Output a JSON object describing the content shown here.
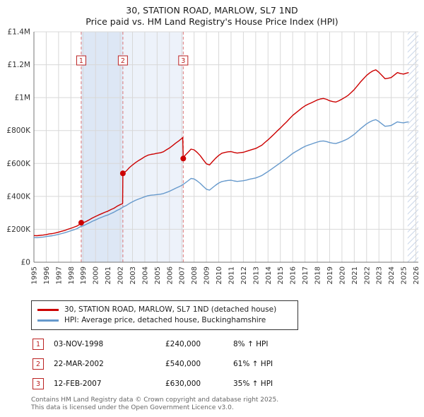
{
  "title": "30, STATION ROAD, MARLOW, SL7 1ND",
  "subtitle": "Price paid vs. HM Land Registry's House Price Index (HPI)",
  "colors": {
    "property_line": "#cc0000",
    "hpi_line": "#6699cc",
    "sale_dashed_line": "#dd7777",
    "marker_box": "#bb2222",
    "band1": "#dde7f5",
    "band2": "#edf2fa",
    "hatch": "#c9d5e8",
    "grid": "#d8d8d8",
    "axis": "#777777",
    "tick_text": "#333333"
  },
  "chart_data": {
    "type": "line",
    "x_range": [
      1995,
      2026.2
    ],
    "ylim": [
      0,
      1400
    ],
    "value_unit": "GBP thousands",
    "grid": true,
    "legend_position": "below",
    "y_ticks": [
      {
        "v": 0,
        "label": "£0"
      },
      {
        "v": 200,
        "label": "£200K"
      },
      {
        "v": 400,
        "label": "£400K"
      },
      {
        "v": 600,
        "label": "£600K"
      },
      {
        "v": 800,
        "label": "£800K"
      },
      {
        "v": 1000,
        "label": "£1M"
      },
      {
        "v": 1200,
        "label": "£1.2M"
      },
      {
        "v": 1400,
        "label": "£1.4M"
      }
    ],
    "x_ticks": [
      1995,
      1996,
      1997,
      1998,
      1999,
      2000,
      2001,
      2002,
      2003,
      2004,
      2005,
      2006,
      2007,
      2008,
      2009,
      2010,
      2011,
      2012,
      2013,
      2014,
      2015,
      2016,
      2017,
      2018,
      2019,
      2020,
      2021,
      2022,
      2023,
      2024,
      2025,
      2026
    ],
    "bands": [
      {
        "from": 1998.84,
        "to": 2002.22
      },
      {
        "from": 2002.22,
        "to": 2007.12
      }
    ],
    "hatch_from": 2025.33,
    "sales": [
      {
        "num": "1",
        "year": 1998.84,
        "price_k": 240
      },
      {
        "num": "2",
        "year": 2002.22,
        "price_k": 540
      },
      {
        "num": "3",
        "year": 2007.12,
        "price_k": 630
      }
    ],
    "series": [
      {
        "name": "30, STATION ROAD, MARLOW, SL7 1ND (detached house)",
        "color": "#cc0000",
        "points": [
          [
            1995,
            162
          ],
          [
            1995.25,
            161
          ],
          [
            1995.5,
            163
          ],
          [
            1995.75,
            165
          ],
          [
            1996,
            168
          ],
          [
            1996.25,
            172
          ],
          [
            1996.5,
            174
          ],
          [
            1996.75,
            178
          ],
          [
            1997,
            183
          ],
          [
            1997.25,
            188
          ],
          [
            1997.5,
            193
          ],
          [
            1997.75,
            200
          ],
          [
            1998,
            206
          ],
          [
            1998.25,
            213
          ],
          [
            1998.5,
            220
          ],
          [
            1998.75,
            232
          ],
          [
            1998.84,
            240
          ],
          [
            1999,
            239
          ],
          [
            1999.25,
            248
          ],
          [
            1999.5,
            258
          ],
          [
            1999.75,
            269
          ],
          [
            2000,
            278
          ],
          [
            2000.25,
            287
          ],
          [
            2000.5,
            295
          ],
          [
            2000.75,
            303
          ],
          [
            2001,
            310
          ],
          [
            2001.25,
            320
          ],
          [
            2001.5,
            328
          ],
          [
            2001.75,
            340
          ],
          [
            2002,
            350
          ],
          [
            2002.2,
            356
          ],
          [
            2002.22,
            540
          ],
          [
            2002.5,
            555
          ],
          [
            2002.75,
            575
          ],
          [
            2003,
            591
          ],
          [
            2003.25,
            605
          ],
          [
            2003.5,
            618
          ],
          [
            2003.75,
            629
          ],
          [
            2004,
            641
          ],
          [
            2004.25,
            650
          ],
          [
            2004.5,
            655
          ],
          [
            2004.75,
            658
          ],
          [
            2005,
            662
          ],
          [
            2005.25,
            665
          ],
          [
            2005.5,
            671
          ],
          [
            2005.75,
            683
          ],
          [
            2006,
            694
          ],
          [
            2006.25,
            708
          ],
          [
            2006.5,
            723
          ],
          [
            2006.75,
            737
          ],
          [
            2007,
            752
          ],
          [
            2007.08,
            758
          ],
          [
            2007.12,
            630
          ],
          [
            2007.25,
            648
          ],
          [
            2007.5,
            667
          ],
          [
            2007.75,
            687
          ],
          [
            2008,
            683
          ],
          [
            2008.25,
            667
          ],
          [
            2008.5,
            647
          ],
          [
            2008.75,
            622
          ],
          [
            2009,
            598
          ],
          [
            2009.25,
            591
          ],
          [
            2009.5,
            612
          ],
          [
            2009.75,
            632
          ],
          [
            2010,
            649
          ],
          [
            2010.25,
            662
          ],
          [
            2010.5,
            667
          ],
          [
            2010.75,
            671
          ],
          [
            2011,
            672
          ],
          [
            2011.25,
            667
          ],
          [
            2011.5,
            663
          ],
          [
            2011.75,
            666
          ],
          [
            2012,
            668
          ],
          [
            2012.25,
            674
          ],
          [
            2012.5,
            680
          ],
          [
            2012.75,
            686
          ],
          [
            2013,
            691
          ],
          [
            2013.25,
            701
          ],
          [
            2013.5,
            711
          ],
          [
            2013.75,
            728
          ],
          [
            2014,
            744
          ],
          [
            2014.25,
            761
          ],
          [
            2014.5,
            779
          ],
          [
            2014.75,
            798
          ],
          [
            2015,
            815
          ],
          [
            2015.25,
            834
          ],
          [
            2015.5,
            852
          ],
          [
            2015.75,
            872
          ],
          [
            2016,
            892
          ],
          [
            2016.25,
            907
          ],
          [
            2016.5,
            922
          ],
          [
            2016.75,
            937
          ],
          [
            2017,
            950
          ],
          [
            2017.25,
            960
          ],
          [
            2017.5,
            968
          ],
          [
            2017.75,
            977
          ],
          [
            2018,
            986
          ],
          [
            2018.25,
            992
          ],
          [
            2018.5,
            995
          ],
          [
            2018.75,
            990
          ],
          [
            2019,
            981
          ],
          [
            2019.25,
            976
          ],
          [
            2019.5,
            973
          ],
          [
            2019.75,
            981
          ],
          [
            2020,
            991
          ],
          [
            2020.25,
            1002
          ],
          [
            2020.5,
            1014
          ],
          [
            2020.75,
            1031
          ],
          [
            2021,
            1049
          ],
          [
            2021.25,
            1072
          ],
          [
            2021.5,
            1095
          ],
          [
            2021.75,
            1115
          ],
          [
            2022,
            1135
          ],
          [
            2022.25,
            1150
          ],
          [
            2022.5,
            1162
          ],
          [
            2022.75,
            1169
          ],
          [
            2023,
            1154
          ],
          [
            2023.25,
            1134
          ],
          [
            2023.5,
            1115
          ],
          [
            2023.75,
            1118
          ],
          [
            2024,
            1122
          ],
          [
            2024.25,
            1137
          ],
          [
            2024.5,
            1152
          ],
          [
            2024.75,
            1146
          ],
          [
            2025,
            1143
          ],
          [
            2025.25,
            1149
          ],
          [
            2025.42,
            1152
          ]
        ]
      },
      {
        "name": "HPI: Average price, detached house, Buckinghamshire",
        "color": "#6699cc",
        "points": [
          [
            1995,
            150
          ],
          [
            1995.25,
            149
          ],
          [
            1995.5,
            151
          ],
          [
            1995.75,
            153
          ],
          [
            1996,
            156
          ],
          [
            1996.25,
            159
          ],
          [
            1996.5,
            161
          ],
          [
            1996.75,
            165
          ],
          [
            1997,
            169
          ],
          [
            1997.25,
            174
          ],
          [
            1997.5,
            179
          ],
          [
            1997.75,
            185
          ],
          [
            1998,
            191
          ],
          [
            1998.25,
            197
          ],
          [
            1998.5,
            204
          ],
          [
            1998.75,
            215
          ],
          [
            1999,
            221
          ],
          [
            1999.25,
            230
          ],
          [
            1999.5,
            239
          ],
          [
            1999.75,
            249
          ],
          [
            2000,
            257
          ],
          [
            2000.25,
            266
          ],
          [
            2000.5,
            273
          ],
          [
            2000.75,
            281
          ],
          [
            2001,
            287
          ],
          [
            2001.25,
            296
          ],
          [
            2001.5,
            304
          ],
          [
            2001.75,
            315
          ],
          [
            2002,
            324
          ],
          [
            2002.25,
            336
          ],
          [
            2002.5,
            345
          ],
          [
            2002.75,
            357
          ],
          [
            2003,
            367
          ],
          [
            2003.25,
            376
          ],
          [
            2003.5,
            384
          ],
          [
            2003.75,
            391
          ],
          [
            2004,
            398
          ],
          [
            2004.25,
            404
          ],
          [
            2004.5,
            407
          ],
          [
            2004.75,
            409
          ],
          [
            2005,
            411
          ],
          [
            2005.25,
            413
          ],
          [
            2005.5,
            417
          ],
          [
            2005.75,
            424
          ],
          [
            2006,
            431
          ],
          [
            2006.25,
            440
          ],
          [
            2006.5,
            449
          ],
          [
            2006.75,
            458
          ],
          [
            2007,
            467
          ],
          [
            2007.25,
            480
          ],
          [
            2007.5,
            494
          ],
          [
            2007.75,
            509
          ],
          [
            2008,
            506
          ],
          [
            2008.25,
            494
          ],
          [
            2008.5,
            479
          ],
          [
            2008.75,
            461
          ],
          [
            2009,
            443
          ],
          [
            2009.25,
            438
          ],
          [
            2009.5,
            453
          ],
          [
            2009.75,
            468
          ],
          [
            2010,
            481
          ],
          [
            2010.25,
            490
          ],
          [
            2010.5,
            494
          ],
          [
            2010.75,
            497
          ],
          [
            2011,
            498
          ],
          [
            2011.25,
            494
          ],
          [
            2011.5,
            491
          ],
          [
            2011.75,
            493
          ],
          [
            2012,
            495
          ],
          [
            2012.25,
            499
          ],
          [
            2012.5,
            504
          ],
          [
            2012.75,
            508
          ],
          [
            2013,
            512
          ],
          [
            2013.25,
            519
          ],
          [
            2013.5,
            527
          ],
          [
            2013.75,
            539
          ],
          [
            2014,
            551
          ],
          [
            2014.25,
            564
          ],
          [
            2014.5,
            577
          ],
          [
            2014.75,
            591
          ],
          [
            2015,
            604
          ],
          [
            2015.25,
            618
          ],
          [
            2015.5,
            631
          ],
          [
            2015.75,
            646
          ],
          [
            2016,
            661
          ],
          [
            2016.25,
            672
          ],
          [
            2016.5,
            683
          ],
          [
            2016.75,
            694
          ],
          [
            2017,
            704
          ],
          [
            2017.25,
            711
          ],
          [
            2017.5,
            717
          ],
          [
            2017.75,
            724
          ],
          [
            2018,
            730
          ],
          [
            2018.25,
            735
          ],
          [
            2018.5,
            737
          ],
          [
            2018.75,
            733
          ],
          [
            2019,
            727
          ],
          [
            2019.25,
            723
          ],
          [
            2019.5,
            721
          ],
          [
            2019.75,
            727
          ],
          [
            2020,
            734
          ],
          [
            2020.25,
            742
          ],
          [
            2020.5,
            751
          ],
          [
            2020.75,
            764
          ],
          [
            2021,
            777
          ],
          [
            2021.25,
            794
          ],
          [
            2021.5,
            811
          ],
          [
            2021.75,
            826
          ],
          [
            2022,
            841
          ],
          [
            2022.25,
            852
          ],
          [
            2022.5,
            861
          ],
          [
            2022.75,
            866
          ],
          [
            2023,
            855
          ],
          [
            2023.25,
            840
          ],
          [
            2023.5,
            826
          ],
          [
            2023.75,
            828
          ],
          [
            2024,
            831
          ],
          [
            2024.25,
            842
          ],
          [
            2024.5,
            853
          ],
          [
            2024.75,
            849
          ],
          [
            2025,
            847
          ],
          [
            2025.25,
            851
          ],
          [
            2025.42,
            853
          ]
        ]
      }
    ],
    "title": "30, STATION ROAD, MARLOW, SL7 1ND",
    "subtitle": "Price paid vs. HM Land Registry's House Price Index (HPI)",
    "xlabel": "",
    "ylabel": ""
  },
  "legend": {
    "items": [
      {
        "label": "30, STATION ROAD, MARLOW, SL7 1ND (detached house)",
        "color": "#cc0000"
      },
      {
        "label": "HPI: Average price, detached house, Buckinghamshire",
        "color": "#6699cc"
      }
    ]
  },
  "transactions": [
    {
      "num": "1",
      "date": "03-NOV-1998",
      "price": "£240,000",
      "delta": "8% ↑ HPI"
    },
    {
      "num": "2",
      "date": "22-MAR-2002",
      "price": "£540,000",
      "delta": "61% ↑ HPI"
    },
    {
      "num": "3",
      "date": "12-FEB-2007",
      "price": "£630,000",
      "delta": "35% ↑ HPI"
    }
  ],
  "footer": {
    "line1": "Contains HM Land Registry data © Crown copyright and database right 2025.",
    "line2": "This data is licensed under the Open Government Licence v3.0."
  }
}
